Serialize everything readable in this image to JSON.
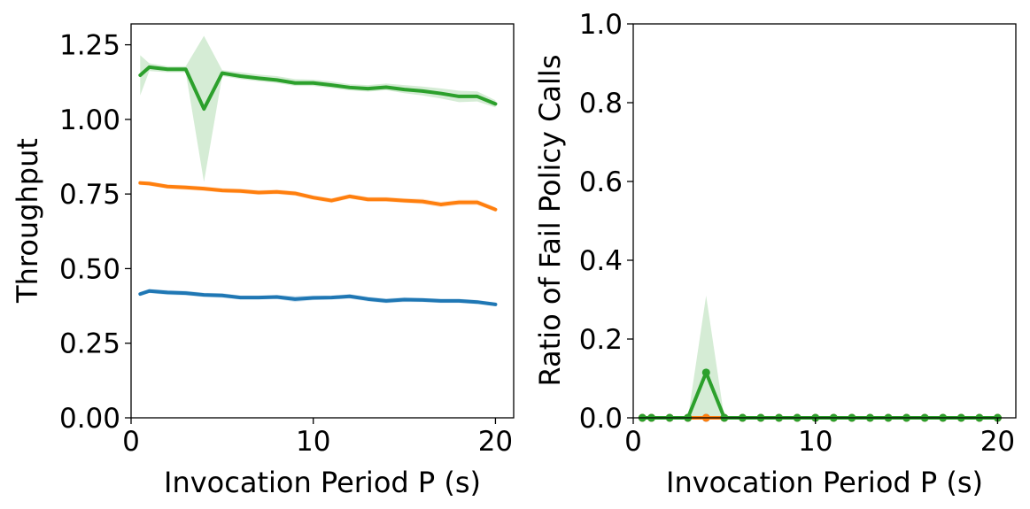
{
  "chart_data": [
    {
      "type": "line",
      "title": "",
      "xlabel": "Invocation Period P (s)",
      "ylabel": "Throughput",
      "xlim": [
        0,
        21
      ],
      "ylim": [
        0,
        1.32
      ],
      "xticks": [
        0,
        10,
        20
      ],
      "xtick_labels": [
        "0",
        "10",
        "20"
      ],
      "yticks": [
        0,
        0.25,
        0.5,
        0.75,
        1.0,
        1.25
      ],
      "ytick_labels": [
        "0.00",
        "0.25",
        "0.50",
        "0.75",
        "1.00",
        "1.25"
      ],
      "grid": false,
      "x": [
        0.5,
        1,
        2,
        3,
        4,
        5,
        6,
        7,
        8,
        9,
        10,
        11,
        12,
        13,
        14,
        15,
        16,
        17,
        18,
        19,
        20
      ],
      "series": [
        {
          "color": "#1f77b4",
          "values": [
            0.415,
            0.425,
            0.42,
            0.418,
            0.412,
            0.41,
            0.403,
            0.403,
            0.405,
            0.398,
            0.402,
            0.403,
            0.407,
            0.398,
            0.392,
            0.396,
            0.395,
            0.392,
            0.392,
            0.388,
            0.38
          ],
          "lower": [
            0.408,
            0.418,
            0.412,
            0.41,
            0.405,
            0.402,
            0.396,
            0.396,
            0.398,
            0.388,
            0.394,
            0.396,
            0.399,
            0.39,
            0.384,
            0.388,
            0.388,
            0.385,
            0.385,
            0.381,
            0.374
          ],
          "upper": [
            0.422,
            0.432,
            0.428,
            0.426,
            0.419,
            0.418,
            0.41,
            0.41,
            0.412,
            0.408,
            0.41,
            0.41,
            0.415,
            0.406,
            0.4,
            0.404,
            0.402,
            0.399,
            0.399,
            0.395,
            0.386
          ]
        },
        {
          "color": "#ff7f0e",
          "values": [
            0.787,
            0.785,
            0.775,
            0.772,
            0.768,
            0.762,
            0.76,
            0.755,
            0.757,
            0.752,
            0.738,
            0.728,
            0.742,
            0.732,
            0.732,
            0.728,
            0.725,
            0.715,
            0.722,
            0.722,
            0.698
          ],
          "lower": [
            0.78,
            0.778,
            0.768,
            0.764,
            0.76,
            0.754,
            0.752,
            0.747,
            0.749,
            0.744,
            0.73,
            0.72,
            0.734,
            0.724,
            0.724,
            0.72,
            0.716,
            0.706,
            0.713,
            0.713,
            0.69
          ],
          "upper": [
            0.794,
            0.792,
            0.782,
            0.78,
            0.776,
            0.77,
            0.768,
            0.763,
            0.765,
            0.76,
            0.746,
            0.736,
            0.75,
            0.74,
            0.74,
            0.736,
            0.734,
            0.724,
            0.731,
            0.731,
            0.706
          ]
        },
        {
          "color": "#2ca02c",
          "values": [
            1.148,
            1.175,
            1.168,
            1.168,
            1.035,
            1.155,
            1.145,
            1.138,
            1.132,
            1.122,
            1.122,
            1.115,
            1.107,
            1.103,
            1.108,
            1.1,
            1.095,
            1.087,
            1.077,
            1.077,
            1.052
          ],
          "lower": [
            1.08,
            1.162,
            1.158,
            1.158,
            0.79,
            1.145,
            1.135,
            1.128,
            1.122,
            1.112,
            1.112,
            1.105,
            1.097,
            1.093,
            1.098,
            1.088,
            1.08,
            1.07,
            1.058,
            1.06,
            1.04
          ],
          "upper": [
            1.215,
            1.188,
            1.178,
            1.178,
            1.28,
            1.165,
            1.158,
            1.15,
            1.145,
            1.135,
            1.133,
            1.127,
            1.118,
            1.115,
            1.12,
            1.115,
            1.11,
            1.104,
            1.096,
            1.094,
            1.064
          ]
        }
      ]
    },
    {
      "type": "line",
      "title": "",
      "xlabel": "Invocation Period P (s)",
      "ylabel": "Ratio of Fail Policy Calls",
      "xlim": [
        0,
        21
      ],
      "ylim": [
        0,
        1.0
      ],
      "xticks": [
        0,
        10,
        20
      ],
      "xtick_labels": [
        "0",
        "10",
        "20"
      ],
      "yticks": [
        0,
        0.2,
        0.4,
        0.6,
        0.8,
        1.0
      ],
      "ytick_labels": [
        "0.0",
        "0.2",
        "0.4",
        "0.6",
        "0.8",
        "1.0"
      ],
      "grid": false,
      "x": [
        0.5,
        1,
        2,
        3,
        4,
        5,
        6,
        7,
        8,
        9,
        10,
        11,
        12,
        13,
        14,
        15,
        16,
        17,
        18,
        19,
        20
      ],
      "series": [
        {
          "color": "#1f77b4",
          "values": [
            0,
            0,
            0,
            0,
            0,
            0,
            0,
            0,
            0,
            0,
            0,
            0,
            0,
            0,
            0,
            0,
            0,
            0,
            0,
            0,
            0
          ]
        },
        {
          "color": "#ff7f0e",
          "values": [
            0,
            0,
            0,
            0,
            0,
            0,
            0,
            0,
            0,
            0,
            0,
            0,
            0,
            0,
            0,
            0,
            0,
            0,
            0,
            0,
            0
          ]
        },
        {
          "color": "#2ca02c",
          "values": [
            0,
            0,
            0,
            0,
            0.115,
            0,
            0,
            0,
            0,
            0,
            0,
            0,
            0,
            0,
            0,
            0,
            0,
            0,
            0,
            0,
            0
          ],
          "lower": [
            0,
            0,
            0,
            0,
            0,
            0,
            0,
            0,
            0,
            0,
            0,
            0,
            0,
            0,
            0,
            0,
            0,
            0,
            0,
            0,
            0
          ],
          "upper": [
            0,
            0,
            0,
            0,
            0.31,
            0,
            0,
            0,
            0,
            0,
            0,
            0,
            0,
            0,
            0,
            0,
            0,
            0,
            0,
            0,
            0
          ]
        }
      ]
    }
  ]
}
